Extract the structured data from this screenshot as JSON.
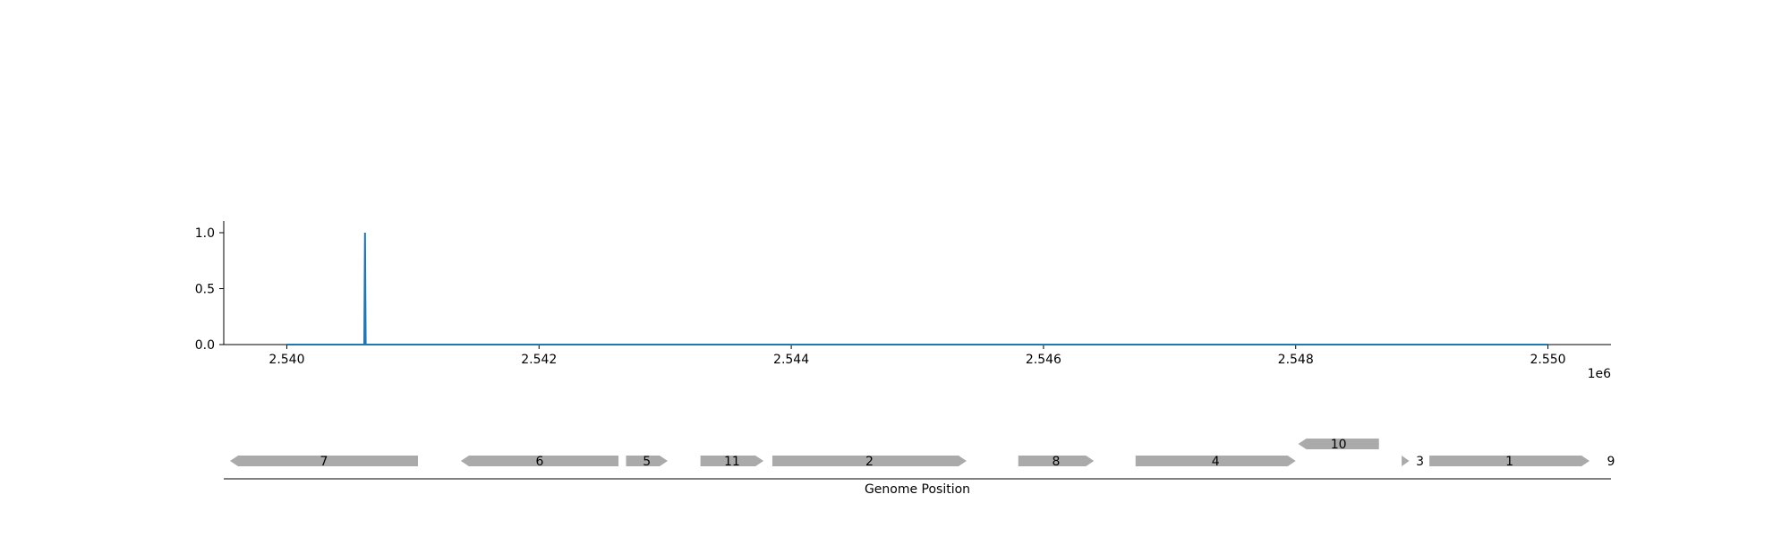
{
  "chart_data": [
    {
      "type": "line",
      "x_range": [
        2540000,
        2550000
      ],
      "xlim": [
        2539500,
        2550500
      ],
      "ylim": [
        0,
        1.1
      ],
      "x_ticks": [
        2540000,
        2542000,
        2544000,
        2546000,
        2548000,
        2550000
      ],
      "x_tick_labels": [
        "2.540",
        "2.542",
        "2.544",
        "2.546",
        "2.548",
        "2.550"
      ],
      "x_offset_label": "1e6",
      "y_ticks": [
        0.0,
        0.5,
        1.0
      ],
      "y_tick_labels": [
        "0.0",
        "0.5",
        "1.0"
      ],
      "series": [
        {
          "color": "#1f77b4",
          "baseline": 0,
          "peaks": [
            {
              "x": 2540620,
              "y": 1.0
            }
          ]
        }
      ],
      "grid": false
    },
    {
      "type": "gene-map",
      "xlabel": "Genome Position",
      "color": "#aaaaaa",
      "genes": [
        {
          "label": "7",
          "start": 2539550,
          "end": 2541040,
          "strand": -1,
          "row": 0
        },
        {
          "label": "6",
          "start": 2541380,
          "end": 2542630,
          "strand": -1,
          "row": 0
        },
        {
          "label": "5",
          "start": 2542690,
          "end": 2543020,
          "strand": 1,
          "row": 0
        },
        {
          "label": "11",
          "start": 2543280,
          "end": 2543780,
          "strand": 1,
          "row": 0
        },
        {
          "label": "2",
          "start": 2543850,
          "end": 2545390,
          "strand": 1,
          "row": 0
        },
        {
          "label": "8",
          "start": 2545800,
          "end": 2546400,
          "strand": 1,
          "row": 0
        },
        {
          "label": "4",
          "start": 2546730,
          "end": 2548000,
          "strand": 1,
          "row": 0
        },
        {
          "label": "10",
          "start": 2548020,
          "end": 2548660,
          "strand": -1,
          "row": 1
        },
        {
          "label": "3",
          "start": 2548840,
          "end": 2548900,
          "strand": 1,
          "row": 0
        },
        {
          "label": "1",
          "start": 2549060,
          "end": 2550330,
          "strand": 1,
          "row": 0
        },
        {
          "label": "9",
          "start": 2550500,
          "end": 2550510,
          "strand": 1,
          "row": 0
        }
      ]
    }
  ]
}
